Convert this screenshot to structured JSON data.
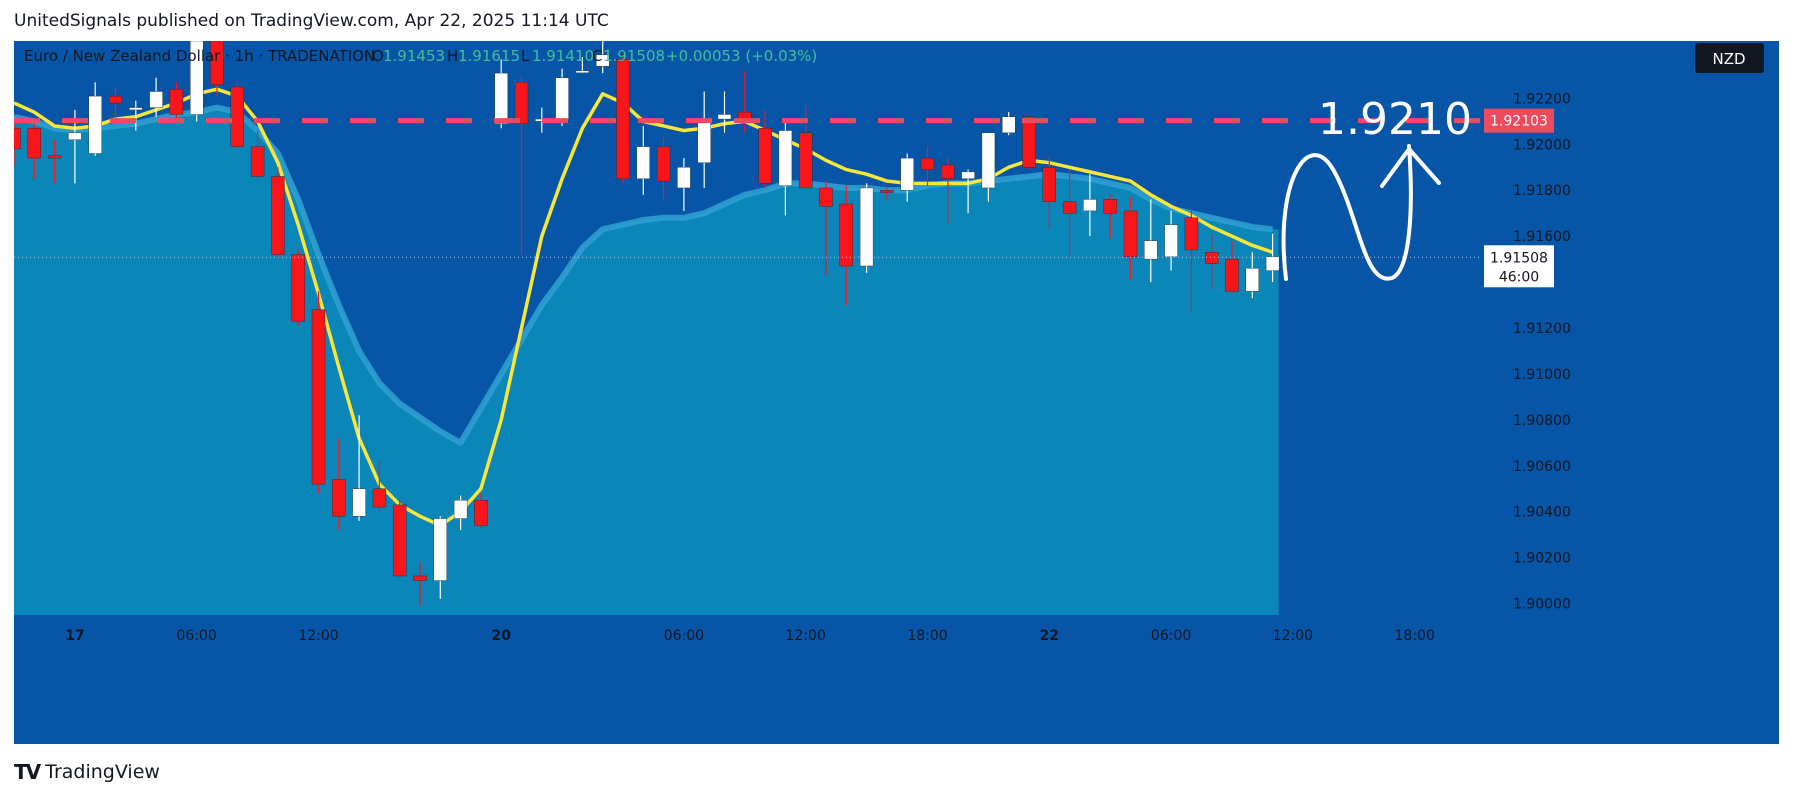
{
  "header": {
    "published": "UnitedSignals published on TradingView.com, Apr 22, 2025 11:14 UTC"
  },
  "footer": {
    "brand": "TradingView",
    "logo": "tv-logo-icon"
  },
  "legend": {
    "symbol": "Euro / New Zealand Dollar · 1h · TRADENATION",
    "o_label": "O",
    "o": "1.91453",
    "h_label": "H",
    "h": "1.91615",
    "l_label": "L",
    "l": "1.91410",
    "c_label": "C",
    "c": "1.91508",
    "change": "+0.00053 (+0.03%)"
  },
  "currency_badge": "NZD",
  "colors": {
    "background": "#0655a6",
    "fill": "#0a86b9",
    "up": "#ffffff",
    "down": "#f7161a",
    "ema_fast": "#f8e63a",
    "ema_slow": "#2f9ed0",
    "target": "#f14a5e"
  },
  "chart_data": {
    "type": "candlestick",
    "ylim": [
      1.8995,
      1.9245
    ],
    "y_ticks": [
      1.9,
      1.902,
      1.904,
      1.906,
      1.908,
      1.91,
      1.912,
      1.916,
      1.918,
      1.92,
      1.922
    ],
    "y_tick_labels": [
      "1.90000",
      "1.90200",
      "1.90400",
      "1.90600",
      "1.90800",
      "1.91000",
      "1.91200",
      "1.91600",
      "1.91800",
      "1.92000",
      "1.92200"
    ],
    "x_ticks": [
      {
        "i": 3,
        "label": "17"
      },
      {
        "i": 9,
        "label": "06:00"
      },
      {
        "i": 15,
        "label": "12:00"
      },
      {
        "i": 24,
        "label": "20"
      },
      {
        "i": 33,
        "label": "06:00"
      },
      {
        "i": 39,
        "label": "12:00"
      },
      {
        "i": 45,
        "label": "18:00"
      },
      {
        "i": 51,
        "label": "22"
      },
      {
        "i": 57,
        "label": "06:00"
      },
      {
        "i": 63,
        "label": "12:00"
      },
      {
        "i": 69,
        "label": "18:00"
      }
    ],
    "candles": [
      {
        "o": 1.9207,
        "h": 1.9209,
        "l": 1.9191,
        "c": 1.9198
      },
      {
        "o": 1.9207,
        "h": 1.9211,
        "l": 1.9185,
        "c": 1.9194
      },
      {
        "o": 1.9195,
        "h": 1.9202,
        "l": 1.9183,
        "c": 1.9194
      },
      {
        "o": 1.9202,
        "h": 1.9215,
        "l": 1.9183,
        "c": 1.9205
      },
      {
        "o": 1.9196,
        "h": 1.9227,
        "l": 1.9195,
        "c": 1.9221
      },
      {
        "o": 1.9221,
        "h": 1.9225,
        "l": 1.9209,
        "c": 1.9218
      },
      {
        "o": 1.9215,
        "h": 1.9219,
        "l": 1.9206,
        "c": 1.9216
      },
      {
        "o": 1.9216,
        "h": 1.9229,
        "l": 1.9212,
        "c": 1.9223
      },
      {
        "o": 1.9224,
        "h": 1.9227,
        "l": 1.9211,
        "c": 1.9213
      },
      {
        "o": 1.9213,
        "h": 1.9245,
        "l": 1.921,
        "c": 1.9245
      },
      {
        "o": 1.9245,
        "h": 1.9252,
        "l": 1.9221,
        "c": 1.9226
      },
      {
        "o": 1.9225,
        "h": 1.9227,
        "l": 1.9198,
        "c": 1.9199
      },
      {
        "o": 1.9199,
        "h": 1.9206,
        "l": 1.9184,
        "c": 1.9186
      },
      {
        "o": 1.9186,
        "h": 1.919,
        "l": 1.915,
        "c": 1.9152
      },
      {
        "o": 1.9152,
        "h": 1.9154,
        "l": 1.9121,
        "c": 1.9123
      },
      {
        "o": 1.9128,
        "h": 1.9136,
        "l": 1.9048,
        "c": 1.9052
      },
      {
        "o": 1.9054,
        "h": 1.9072,
        "l": 1.9032,
        "c": 1.9038
      },
      {
        "o": 1.9038,
        "h": 1.9082,
        "l": 1.9036,
        "c": 1.905
      },
      {
        "o": 1.905,
        "h": 1.9062,
        "l": 1.904,
        "c": 1.9042
      },
      {
        "o": 1.9043,
        "h": 1.9045,
        "l": 1.9011,
        "c": 1.9012
      },
      {
        "o": 1.9012,
        "h": 1.9018,
        "l": 1.8999,
        "c": 1.901
      },
      {
        "o": 1.901,
        "h": 1.9038,
        "l": 1.9002,
        "c": 1.9037
      },
      {
        "o": 1.9037,
        "h": 1.9047,
        "l": 1.9032,
        "c": 1.9045
      },
      {
        "o": 1.9045,
        "h": 1.9048,
        "l": 1.9033,
        "c": 1.9034
      },
      {
        "o": 1.9209,
        "h": 1.9237,
        "l": 1.9207,
        "c": 1.9231
      },
      {
        "o": 1.9227,
        "h": 1.923,
        "l": 1.9152,
        "c": 1.9209
      },
      {
        "o": 1.921,
        "h": 1.9216,
        "l": 1.9205,
        "c": 1.9211
      },
      {
        "o": 1.9211,
        "h": 1.9233,
        "l": 1.9208,
        "c": 1.9229
      },
      {
        "o": 1.9232,
        "h": 1.9238,
        "l": 1.9231,
        "c": 1.9232
      },
      {
        "o": 1.9234,
        "h": 1.925,
        "l": 1.9231,
        "c": 1.9239
      },
      {
        "o": 1.9237,
        "h": 1.9239,
        "l": 1.9183,
        "c": 1.9185
      },
      {
        "o": 1.9185,
        "h": 1.9208,
        "l": 1.9178,
        "c": 1.9199
      },
      {
        "o": 1.9199,
        "h": 1.9203,
        "l": 1.9176,
        "c": 1.9184
      },
      {
        "o": 1.9181,
        "h": 1.9194,
        "l": 1.9171,
        "c": 1.919
      },
      {
        "o": 1.9192,
        "h": 1.9223,
        "l": 1.9181,
        "c": 1.9211
      },
      {
        "o": 1.9211,
        "h": 1.9223,
        "l": 1.9205,
        "c": 1.9213
      },
      {
        "o": 1.9214,
        "h": 1.9232,
        "l": 1.9205,
        "c": 1.9211
      },
      {
        "o": 1.9207,
        "h": 1.9215,
        "l": 1.9181,
        "c": 1.9183
      },
      {
        "o": 1.9182,
        "h": 1.921,
        "l": 1.9169,
        "c": 1.9206
      },
      {
        "o": 1.9205,
        "h": 1.9217,
        "l": 1.9182,
        "c": 1.9181
      },
      {
        "o": 1.9181,
        "h": 1.9184,
        "l": 1.9143,
        "c": 1.9173
      },
      {
        "o": 1.9174,
        "h": 1.9182,
        "l": 1.913,
        "c": 1.9147
      },
      {
        "o": 1.9147,
        "h": 1.9183,
        "l": 1.9144,
        "c": 1.9181
      },
      {
        "o": 1.918,
        "h": 1.9181,
        "l": 1.9176,
        "c": 1.9179
      },
      {
        "o": 1.918,
        "h": 1.9196,
        "l": 1.9175,
        "c": 1.9194
      },
      {
        "o": 1.9194,
        "h": 1.9199,
        "l": 1.9182,
        "c": 1.9189
      },
      {
        "o": 1.9191,
        "h": 1.9194,
        "l": 1.9165,
        "c": 1.9185
      },
      {
        "o": 1.9185,
        "h": 1.9189,
        "l": 1.917,
        "c": 1.9188
      },
      {
        "o": 1.9181,
        "h": 1.9204,
        "l": 1.9175,
        "c": 1.9205
      },
      {
        "o": 1.9205,
        "h": 1.9214,
        "l": 1.9204,
        "c": 1.9212
      },
      {
        "o": 1.9212,
        "h": 1.9212,
        "l": 1.9189,
        "c": 1.919
      },
      {
        "o": 1.919,
        "h": 1.9195,
        "l": 1.9163,
        "c": 1.9175
      },
      {
        "o": 1.9175,
        "h": 1.9189,
        "l": 1.9151,
        "c": 1.917
      },
      {
        "o": 1.9171,
        "h": 1.9187,
        "l": 1.916,
        "c": 1.9176
      },
      {
        "o": 1.9176,
        "h": 1.9178,
        "l": 1.9159,
        "c": 1.917
      },
      {
        "o": 1.9171,
        "h": 1.9177,
        "l": 1.9141,
        "c": 1.9151
      },
      {
        "o": 1.915,
        "h": 1.9176,
        "l": 1.914,
        "c": 1.9158
      },
      {
        "o": 1.9151,
        "h": 1.9171,
        "l": 1.9145,
        "c": 1.9165
      },
      {
        "o": 1.9168,
        "h": 1.9172,
        "l": 1.9127,
        "c": 1.9154
      },
      {
        "o": 1.9153,
        "h": 1.9161,
        "l": 1.9137,
        "c": 1.9148
      },
      {
        "o": 1.915,
        "h": 1.9158,
        "l": 1.9135,
        "c": 1.9136
      },
      {
        "o": 1.9136,
        "h": 1.9153,
        "l": 1.9133,
        "c": 1.9146
      },
      {
        "o": 1.9145,
        "h": 1.9161,
        "l": 1.914,
        "c": 1.9151
      }
    ],
    "ema_fast": [
      1.9218,
      1.9214,
      1.9208,
      1.9207,
      1.9208,
      1.9211,
      1.9212,
      1.9215,
      1.9218,
      1.9222,
      1.9224,
      1.9221,
      1.921,
      1.9192,
      1.9165,
      1.9135,
      1.9103,
      1.9072,
      1.9052,
      1.9043,
      1.9038,
      1.9034,
      1.904,
      1.905,
      1.908,
      1.912,
      1.916,
      1.9185,
      1.9207,
      1.9222,
      1.9218,
      1.921,
      1.9208,
      1.9206,
      1.9207,
      1.9209,
      1.921,
      1.9206,
      1.9202,
      1.9198,
      1.9193,
      1.9189,
      1.9187,
      1.9184,
      1.9183,
      1.9183,
      1.9183,
      1.9183,
      1.9185,
      1.919,
      1.9193,
      1.9192,
      1.919,
      1.9188,
      1.9186,
      1.9184,
      1.9178,
      1.9173,
      1.9169,
      1.9164,
      1.916,
      1.9156,
      1.9153
    ],
    "ema_slow": [
      1.9212,
      1.921,
      1.9207,
      1.9206,
      1.9207,
      1.9208,
      1.9209,
      1.9211,
      1.9213,
      1.9214,
      1.9216,
      1.9214,
      1.9206,
      1.9196,
      1.9176,
      1.9152,
      1.913,
      1.911,
      1.9096,
      1.9087,
      1.9081,
      1.9075,
      1.907,
      1.9085,
      1.91,
      1.9115,
      1.913,
      1.9142,
      1.9155,
      1.9163,
      1.9165,
      1.9167,
      1.9168,
      1.9168,
      1.917,
      1.9174,
      1.9178,
      1.918,
      1.9183,
      1.9183,
      1.9182,
      1.9181,
      1.9181,
      1.918,
      1.918,
      1.9182,
      1.9183,
      1.9183,
      1.9184,
      1.9185,
      1.9186,
      1.9187,
      1.9186,
      1.9185,
      1.9183,
      1.9181,
      1.9176,
      1.9172,
      1.917,
      1.9168,
      1.9166,
      1.9164,
      1.9163
    ],
    "target_level": 1.92103,
    "target_label": "1.92103",
    "last_price": 1.91508,
    "last_price_label": "1.91508",
    "countdown": "46:00",
    "annotation": "1.9210"
  }
}
